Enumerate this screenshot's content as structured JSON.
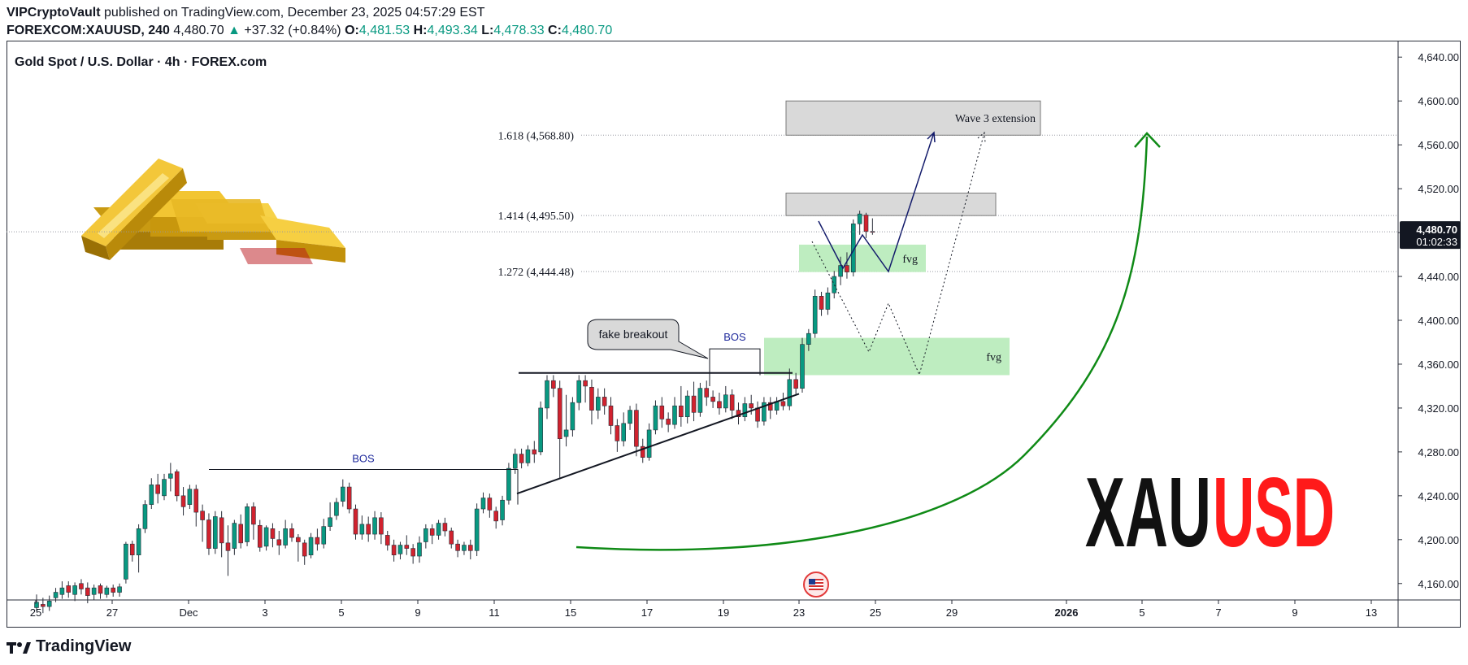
{
  "header": {
    "author": "VIPCryptoVault",
    "published_text": "published on TradingView.com, December 23, 2025 04:57:29 EST",
    "symbol": "FOREXCOM:XAUUSD, 240",
    "last": "4,480.70",
    "change": "+37.32 (+0.84%)",
    "o_label": "O:",
    "o": "4,481.53",
    "h_label": "H:",
    "h": "4,493.34",
    "l_label": "L:",
    "l": "4,478.33",
    "c_label": "C:",
    "c": "4,480.70"
  },
  "chart_title": "Gold Spot / U.S. Dollar · 4h · FOREX.com",
  "footer": {
    "brand": "TradingView"
  },
  "colors": {
    "up": "#089981",
    "green_zone": "#b7ebb9",
    "gray_zone": "#d9d9d9",
    "curve": "#0f8a16",
    "path": "#131b6b",
    "logo_red": "#ff1a1a"
  },
  "chart_data": {
    "type": "candlestick",
    "title": "Gold Spot / U.S. Dollar · 4h · FOREX.com",
    "ylim": [
      4145,
      4655
    ],
    "y_ticks": [
      "4,640.00",
      "4,600.00",
      "4,560.00",
      "4,520.00",
      "4,480.00",
      "4,440.00",
      "4,400.00",
      "4,360.00",
      "4,320.00",
      "4,280.00",
      "4,240.00",
      "4,200.00",
      "4,160.00"
    ],
    "x_ticks": [
      "25",
      "27",
      "Dec",
      "3",
      "5",
      "9",
      "11",
      "15",
      "17",
      "19",
      "23",
      "25",
      "29",
      "2026",
      "5",
      "7",
      "9",
      "13"
    ],
    "current_price": "4,480.70",
    "countdown": "01:02:33",
    "fib_levels": [
      {
        "label": "1.618 (4,568.80)",
        "price": 4568.8
      },
      {
        "label": "1.414 (4,495.50)",
        "price": 4495.5
      },
      {
        "label": "1.272 (4,444.48)",
        "price": 4444.48
      }
    ],
    "zones": [
      {
        "label": "Wave 3 extension",
        "kind": "resistance",
        "low": 4568.8,
        "high": 4600
      },
      {
        "label": "",
        "kind": "resistance",
        "low": 4495.5,
        "high": 4516
      },
      {
        "label": "fvg",
        "kind": "fvg",
        "low": 4444,
        "high": 4469
      },
      {
        "label": "fvg",
        "kind": "fvg",
        "low": 4350,
        "high": 4384
      }
    ],
    "annotations": {
      "bos_low": "BOS",
      "bos_high": "BOS",
      "fake_breakout": "fake breakout"
    },
    "logo": {
      "part1": "XAU",
      "part2": "USD"
    },
    "candles": [
      [
        4138,
        4143,
        4135,
        4150
      ],
      [
        4141,
        4139,
        4133,
        4147
      ],
      [
        4139,
        4144,
        4135,
        4149
      ],
      [
        4147,
        4152,
        4143,
        4156
      ],
      [
        4150,
        4156,
        4146,
        4162
      ],
      [
        4158,
        4152,
        4147,
        4162
      ],
      [
        4150,
        4158,
        4144,
        4161
      ],
      [
        4160,
        4155,
        4150,
        4164
      ],
      [
        4156,
        4149,
        4142,
        4161
      ],
      [
        4150,
        4156,
        4145,
        4159
      ],
      [
        4158,
        4151,
        4146,
        4160
      ],
      [
        4150,
        4156,
        4147,
        4158
      ],
      [
        4156,
        4152,
        4148,
        4159
      ],
      [
        4152,
        4157,
        4148,
        4160
      ],
      [
        4164,
        4196,
        4160,
        4198
      ],
      [
        4196,
        4186,
        4180,
        4199
      ],
      [
        4186,
        4210,
        4170,
        4214
      ],
      [
        4210,
        4232,
        4206,
        4236
      ],
      [
        4232,
        4250,
        4228,
        4256
      ],
      [
        4250,
        4242,
        4233,
        4260
      ],
      [
        4240,
        4255,
        4236,
        4260
      ],
      [
        4256,
        4260,
        4244,
        4270
      ],
      [
        4262,
        4240,
        4235,
        4264
      ],
      [
        4240,
        4230,
        4222,
        4248
      ],
      [
        4232,
        4246,
        4228,
        4250
      ],
      [
        4246,
        4225,
        4212,
        4250
      ],
      [
        4226,
        4218,
        4198,
        4232
      ],
      [
        4218,
        4192,
        4186,
        4224
      ],
      [
        4192,
        4221,
        4187,
        4226
      ],
      [
        4220,
        4197,
        4184,
        4226
      ],
      [
        4197,
        4190,
        4167,
        4213
      ],
      [
        4192,
        4215,
        4186,
        4218
      ],
      [
        4214,
        4197,
        4192,
        4223
      ],
      [
        4198,
        4230,
        4194,
        4233
      ],
      [
        4230,
        4214,
        4200,
        4234
      ],
      [
        4213,
        4193,
        4189,
        4218
      ],
      [
        4194,
        4211,
        4190,
        4213
      ],
      [
        4210,
        4201,
        4193,
        4215
      ],
      [
        4200,
        4195,
        4186,
        4208
      ],
      [
        4195,
        4210,
        4192,
        4218
      ],
      [
        4210,
        4202,
        4198,
        4215
      ],
      [
        4202,
        4198,
        4180,
        4205
      ],
      [
        4197,
        4185,
        4177,
        4200
      ],
      [
        4186,
        4202,
        4183,
        4206
      ],
      [
        4202,
        4196,
        4190,
        4210
      ],
      [
        4196,
        4212,
        4192,
        4219
      ],
      [
        4212,
        4220,
        4208,
        4234
      ],
      [
        4222,
        4234,
        4218,
        4238
      ],
      [
        4235,
        4248,
        4230,
        4255
      ],
      [
        4248,
        4228,
        4224,
        4252
      ],
      [
        4228,
        4205,
        4200,
        4232
      ],
      [
        4205,
        4214,
        4200,
        4222
      ],
      [
        4214,
        4205,
        4198,
        4221
      ],
      [
        4205,
        4220,
        4200,
        4226
      ],
      [
        4220,
        4205,
        4196,
        4225
      ],
      [
        4204,
        4195,
        4190,
        4208
      ],
      [
        4195,
        4186,
        4180,
        4200
      ],
      [
        4187,
        4195,
        4182,
        4198
      ],
      [
        4195,
        4192,
        4186,
        4204
      ],
      [
        4192,
        4185,
        4178,
        4196
      ],
      [
        4185,
        4197,
        4179,
        4203
      ],
      [
        4198,
        4210,
        4192,
        4214
      ],
      [
        4210,
        4204,
        4196,
        4214
      ],
      [
        4204,
        4215,
        4200,
        4218
      ],
      [
        4215,
        4208,
        4203,
        4220
      ],
      [
        4208,
        4196,
        4192,
        4211
      ],
      [
        4196,
        4190,
        4184,
        4200
      ],
      [
        4190,
        4195,
        4186,
        4198
      ],
      [
        4195,
        4190,
        4182,
        4200
      ],
      [
        4190,
        4228,
        4185,
        4233
      ],
      [
        4228,
        4238,
        4224,
        4243
      ],
      [
        4238,
        4227,
        4220,
        4242
      ],
      [
        4226,
        4217,
        4210,
        4230
      ],
      [
        4218,
        4236,
        4213,
        4240
      ],
      [
        4236,
        4265,
        4232,
        4270
      ],
      [
        4265,
        4278,
        4260,
        4283
      ],
      [
        4278,
        4270,
        4265,
        4283
      ],
      [
        4270,
        4282,
        4267,
        4286
      ],
      [
        4282,
        4278,
        4270,
        4290
      ],
      [
        4280,
        4320,
        4277,
        4326
      ],
      [
        4320,
        4345,
        4310,
        4350
      ],
      [
        4345,
        4338,
        4330,
        4350
      ],
      [
        4338,
        4292,
        4256,
        4345
      ],
      [
        4294,
        4300,
        4285,
        4332
      ],
      [
        4300,
        4325,
        4294,
        4330
      ],
      [
        4325,
        4345,
        4318,
        4350
      ],
      [
        4345,
        4340,
        4325,
        4350
      ],
      [
        4339,
        4318,
        4305,
        4346
      ],
      [
        4318,
        4330,
        4310,
        4338
      ],
      [
        4330,
        4322,
        4314,
        4338
      ],
      [
        4322,
        4304,
        4296,
        4330
      ],
      [
        4304,
        4290,
        4280,
        4310
      ],
      [
        4290,
        4306,
        4285,
        4316
      ],
      [
        4306,
        4318,
        4300,
        4322
      ],
      [
        4318,
        4285,
        4276,
        4324
      ],
      [
        4285,
        4275,
        4270,
        4292
      ],
      [
        4275,
        4300,
        4272,
        4306
      ],
      [
        4300,
        4322,
        4296,
        4327
      ],
      [
        4322,
        4310,
        4302,
        4330
      ],
      [
        4310,
        4305,
        4298,
        4316
      ],
      [
        4305,
        4322,
        4301,
        4330
      ],
      [
        4322,
        4312,
        4303,
        4340
      ],
      [
        4312,
        4331,
        4306,
        4336
      ],
      [
        4331,
        4316,
        4308,
        4344
      ],
      [
        4316,
        4338,
        4312,
        4343
      ],
      [
        4338,
        4330,
        4322,
        4345
      ],
      [
        4330,
        4326,
        4320,
        4336
      ],
      [
        4326,
        4320,
        4314,
        4334
      ],
      [
        4320,
        4332,
        4316,
        4340
      ],
      [
        4332,
        4318,
        4310,
        4337
      ],
      [
        4318,
        4312,
        4305,
        4325
      ],
      [
        4312,
        4324,
        4308,
        4330
      ],
      [
        4324,
        4320,
        4314,
        4332
      ],
      [
        4320,
        4308,
        4302,
        4326
      ],
      [
        4308,
        4325,
        4304,
        4330
      ],
      [
        4325,
        4318,
        4310,
        4330
      ],
      [
        4318,
        4326,
        4314,
        4330
      ],
      [
        4326,
        4322,
        4318,
        4334
      ],
      [
        4322,
        4346,
        4318,
        4356
      ],
      [
        4346,
        4338,
        4332,
        4352
      ],
      [
        4338,
        4378,
        4334,
        4384
      ],
      [
        4378,
        4388,
        4372,
        4392
      ],
      [
        4388,
        4422,
        4384,
        4428
      ],
      [
        4422,
        4410,
        4404,
        4426
      ],
      [
        4410,
        4425,
        4405,
        4430
      ],
      [
        4425,
        4440,
        4420,
        4445
      ],
      [
        4440,
        4450,
        4432,
        4458
      ],
      [
        4450,
        4444,
        4438,
        4462
      ],
      [
        4444,
        4488,
        4440,
        4492
      ],
      [
        4488,
        4497,
        4478,
        4500
      ],
      [
        4496,
        4481,
        4475,
        4498
      ],
      [
        4481,
        4480.7,
        4478,
        4493
      ]
    ]
  }
}
